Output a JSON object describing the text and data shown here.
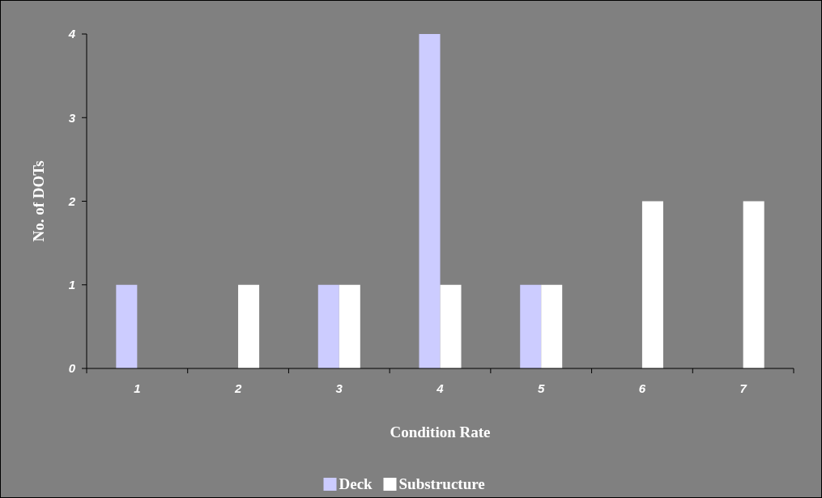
{
  "chart_data": {
    "type": "bar",
    "xlabel": "Condition Rate",
    "ylabel": "No. of DOTs",
    "categories": [
      "1",
      "2",
      "3",
      "4",
      "5",
      "6",
      "7"
    ],
    "series": [
      {
        "name": "Deck",
        "color": "#ccccff",
        "values": [
          1,
          0,
          1,
          4,
          1,
          0,
          0
        ]
      },
      {
        "name": "Substructure",
        "color": "#ffffff",
        "values": [
          0,
          1,
          1,
          1,
          1,
          2,
          2
        ]
      }
    ],
    "ylim": [
      0,
      4
    ],
    "yticks": [
      0,
      1,
      2,
      3,
      4
    ],
    "grid": false,
    "legend": "bottom"
  }
}
